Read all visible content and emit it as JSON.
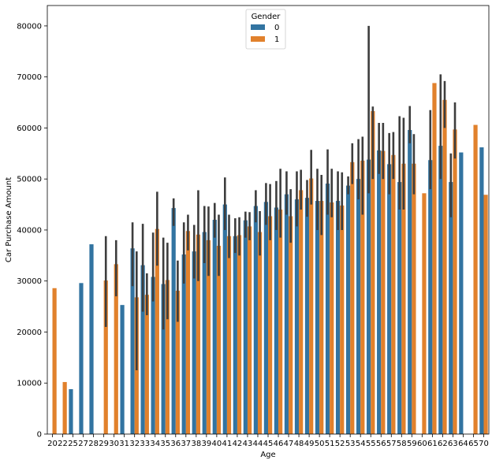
{
  "chart_data": {
    "type": "bar",
    "xlabel": "Age",
    "ylabel": "Car Purchase Amount",
    "ylim": [
      0,
      84000
    ],
    "yticks": [
      0,
      10000,
      20000,
      30000,
      40000,
      50000,
      60000,
      70000,
      80000
    ],
    "grid": false,
    "legend": {
      "title": "Gender",
      "placement": "top-center"
    },
    "categories": [
      "20",
      "22",
      "25",
      "27",
      "28",
      "29",
      "30",
      "31",
      "32",
      "33",
      "34",
      "35",
      "36",
      "37",
      "38",
      "39",
      "40",
      "41",
      "42",
      "43",
      "44",
      "45",
      "46",
      "47",
      "48",
      "49",
      "50",
      "51",
      "52",
      "53",
      "54",
      "55",
      "56",
      "57",
      "58",
      "59",
      "60",
      "61",
      "62",
      "63",
      "64",
      "65",
      "70"
    ],
    "series": [
      {
        "name": "0",
        "color": "#3274a1",
        "values": [
          null,
          null,
          8800,
          29600,
          37200,
          null,
          null,
          25300,
          36400,
          33100,
          30800,
          29400,
          44300,
          35200,
          35800,
          39600,
          42000,
          45000,
          38800,
          41900,
          44700,
          45500,
          44400,
          47000,
          46000,
          46300,
          45700,
          49100,
          45700,
          48700,
          50000,
          53800,
          55600,
          52900,
          49400,
          59600,
          null,
          53700,
          56500,
          49400,
          55200,
          null,
          56200
        ],
        "errors": [
          null,
          null,
          null,
          null,
          null,
          null,
          null,
          null,
          [
            29000,
            41500
          ],
          [
            24000,
            41200
          ],
          [
            26000,
            39500
          ],
          [
            20500,
            38500
          ],
          [
            40800,
            46200
          ],
          [
            29500,
            41500
          ],
          [
            30500,
            41000
          ],
          [
            33500,
            44700
          ],
          [
            38500,
            45300
          ],
          [
            40000,
            50300
          ],
          [
            35500,
            42300
          ],
          [
            38500,
            43600
          ],
          [
            41500,
            47800
          ],
          [
            41000,
            49200
          ],
          [
            40000,
            49600
          ],
          [
            43000,
            51500
          ],
          [
            40700,
            51500
          ],
          [
            42600,
            49800
          ],
          [
            40000,
            52000
          ],
          [
            43000,
            55800
          ],
          [
            40000,
            51500
          ],
          [
            47000,
            50500
          ],
          [
            46000,
            57800
          ],
          [
            47200,
            80000
          ],
          [
            51000,
            61000
          ],
          [
            47000,
            59000
          ],
          [
            44000,
            62300
          ],
          [
            57000,
            64300
          ],
          [
            null,
            null
          ],
          [
            48000,
            63500
          ],
          [
            50000,
            70500
          ],
          [
            42500,
            55000
          ],
          [
            null,
            null
          ],
          [
            null,
            null
          ],
          [
            null,
            null
          ]
        ]
      },
      {
        "name": "1",
        "color": "#e1812c",
        "values": [
          28600,
          10200,
          null,
          null,
          null,
          30100,
          33300,
          null,
          26800,
          27300,
          40200,
          30200,
          28100,
          39800,
          39100,
          38000,
          36900,
          38800,
          39000,
          40700,
          39600,
          42700,
          44000,
          42700,
          47800,
          50100,
          45700,
          45400,
          44800,
          53300,
          53600,
          63300,
          55500,
          54700,
          53000,
          53000,
          47200,
          68800,
          65500,
          59700,
          null,
          60600,
          46900
        ],
        "errors": [
          null,
          null,
          null,
          null,
          null,
          [
            21000,
            38800
          ],
          [
            27000,
            38000
          ],
          null,
          [
            12500,
            35800
          ],
          [
            23300,
            31500
          ],
          [
            33000,
            47500
          ],
          [
            22500,
            37500
          ],
          [
            22000,
            34000
          ],
          [
            36000,
            43000
          ],
          [
            30000,
            47800
          ],
          [
            31000,
            44600
          ],
          [
            31000,
            43000
          ],
          [
            34500,
            43000
          ],
          [
            35000,
            42500
          ],
          [
            38000,
            43500
          ],
          [
            35000,
            43700
          ],
          [
            38000,
            49000
          ],
          [
            38500,
            52000
          ],
          [
            37500,
            48000
          ],
          [
            44000,
            51800
          ],
          [
            45000,
            55700
          ],
          [
            39000,
            50800
          ],
          [
            42500,
            52000
          ],
          [
            40000,
            51300
          ],
          [
            49000,
            57000
          ],
          [
            43000,
            58300
          ],
          [
            50000,
            64200
          ],
          [
            50000,
            61000
          ],
          [
            50000,
            59200
          ],
          [
            44000,
            62000
          ],
          [
            47000,
            58800
          ],
          [
            null,
            null
          ],
          [
            null,
            null
          ],
          [
            60000,
            69200
          ],
          [
            54000,
            65000
          ],
          [
            null,
            null
          ],
          [
            null,
            null
          ],
          [
            null,
            null
          ]
        ]
      }
    ]
  }
}
